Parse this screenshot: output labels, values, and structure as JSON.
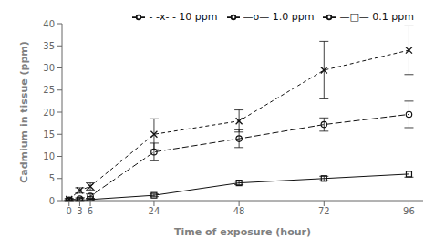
{
  "chart_data": {
    "type": "line",
    "xlabel": "Time of exposure (hour)",
    "ylabel": "Cadmium in tissue (ppm)",
    "x": [
      0,
      3,
      6,
      24,
      48,
      72,
      96
    ],
    "series": [
      {
        "name": "- -x- - 10 ppm",
        "values": [
          0.3,
          2.3,
          3.2,
          15.0,
          18.0,
          29.5,
          34.0
        ],
        "yerr": [
          0.2,
          0.6,
          0.8,
          3.5,
          2.5,
          6.5,
          5.5
        ],
        "marker": "x",
        "line_style": "dashed"
      },
      {
        "name": "—o—  1.0 ppm",
        "values": [
          0.15,
          0.4,
          1.0,
          11.0,
          14.0,
          17.2,
          19.5
        ],
        "yerr": [
          0.1,
          0.2,
          0.5,
          2.0,
          2.0,
          1.5,
          3.0
        ],
        "marker": "circle",
        "line_style": "longdash"
      },
      {
        "name": "—□—  0.1 ppm",
        "values": [
          0.05,
          0.05,
          0.25,
          1.2,
          4.0,
          5.0,
          6.0
        ],
        "yerr": [
          0.05,
          0.05,
          0.15,
          0.3,
          0.4,
          0.5,
          0.7
        ],
        "marker": "square",
        "line_style": "solid"
      }
    ],
    "color": "#111111",
    "xlim": [
      -2,
      100
    ],
    "xticks": [
      0,
      3,
      6,
      24,
      48,
      72,
      96
    ],
    "ylim": [
      0,
      40
    ],
    "yticks": [
      0,
      5,
      10,
      15,
      20,
      25,
      30,
      35,
      40
    ],
    "grid": false,
    "legend": "upper right"
  }
}
